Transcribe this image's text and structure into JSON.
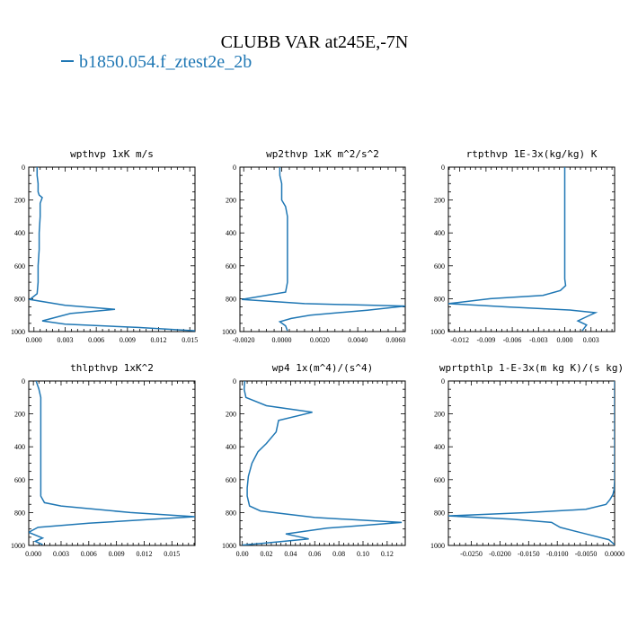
{
  "title": "CLUBB VAR at245E,-7N",
  "legend": {
    "label": "b1850.054.f_ztest2e_2b",
    "color": "#1f77b4"
  },
  "chart_data": [
    {
      "type": "line",
      "title": "wpthvp  1xK m/s",
      "xlim": [
        -0.0005,
        0.0155
      ],
      "ylim": [
        1000,
        0
      ],
      "xticks": [
        0.0,
        0.003,
        0.006,
        0.009,
        0.012,
        0.015
      ],
      "xtick_labels": [
        "0.000",
        "0.003",
        "0.006",
        "0.009",
        "0.012",
        "0.015"
      ],
      "yticks": [
        0,
        200,
        400,
        600,
        800,
        1000
      ],
      "series": [
        {
          "x": [
            0.0003,
            0.0003,
            0.0004,
            0.0004,
            0.0005,
            0.0008,
            0.0006,
            0.0006,
            0.0005,
            0.0005,
            0.0004,
            0.0004,
            0.0003,
            -0.0004,
            0.003,
            0.0078,
            0.0035,
            0.0008,
            0.003,
            0.01,
            0.0155
          ],
          "y": [
            0,
            50,
            100,
            150,
            170,
            185,
            220,
            300,
            400,
            500,
            600,
            700,
            770,
            805,
            840,
            865,
            890,
            935,
            955,
            975,
            995
          ]
        }
      ]
    },
    {
      "type": "line",
      "title": "wp2thvp  1xK m^2/s^2",
      "xlim": [
        -0.0022,
        0.0065
      ],
      "ylim": [
        1000,
        0
      ],
      "xticks": [
        -0.002,
        0.0,
        0.002,
        0.004,
        0.006
      ],
      "xtick_labels": [
        "-0.0020",
        "0.0000",
        "0.0020",
        "0.0040",
        "0.0060"
      ],
      "yticks": [
        0,
        200,
        400,
        600,
        800,
        1000
      ],
      "series": [
        {
          "x": [
            -0.0001,
            -0.0001,
            0.0,
            0.0,
            0.0002,
            0.0003,
            0.0003,
            0.0003,
            0.0003,
            0.0003,
            0.0002,
            -0.0021,
            0.0012,
            0.0065,
            0.0045,
            0.0015,
            0.0005,
            -0.0001,
            0.0002,
            0.0003
          ],
          "y": [
            0,
            50,
            100,
            200,
            240,
            300,
            400,
            500,
            600,
            700,
            760,
            805,
            830,
            845,
            870,
            900,
            920,
            940,
            965,
            995
          ]
        }
      ]
    },
    {
      "type": "line",
      "title": "rtpthvp  1E-3x(kg/kg) K",
      "xlim": [
        -0.0133,
        0.0057
      ],
      "ylim": [
        1000,
        0
      ],
      "xticks": [
        -0.012,
        -0.009,
        -0.006,
        -0.003,
        0.0,
        0.003
      ],
      "xtick_labels": [
        "-0.012",
        "-0.009",
        "-0.006",
        "-0.003",
        "0.000",
        "0.003"
      ],
      "yticks": [
        0,
        200,
        400,
        600,
        800,
        1000
      ],
      "series": [
        {
          "x": [
            0.0,
            0.0,
            0.0,
            0.0,
            0.0,
            0.0001,
            -0.0005,
            -0.0025,
            -0.0085,
            -0.0133,
            -0.0065,
            0.0008,
            0.0035,
            0.0025,
            0.0015,
            0.0025,
            0.002
          ],
          "y": [
            0,
            200,
            400,
            600,
            680,
            720,
            750,
            780,
            800,
            830,
            850,
            870,
            885,
            910,
            935,
            960,
            995
          ]
        }
      ]
    },
    {
      "type": "line",
      "title": "thlpthvp  1xK^2",
      "xlim": [
        -0.0005,
        0.0175
      ],
      "ylim": [
        1000,
        0
      ],
      "xticks": [
        0.0,
        0.003,
        0.006,
        0.009,
        0.012,
        0.015
      ],
      "xtick_labels": [
        "0.000",
        "0.003",
        "0.006",
        "0.009",
        "0.012",
        "0.015"
      ],
      "yticks": [
        0,
        200,
        400,
        600,
        800,
        1000
      ],
      "series": [
        {
          "x": [
            0.0003,
            0.0006,
            0.0008,
            0.0008,
            0.0008,
            0.0008,
            0.0008,
            0.0012,
            0.003,
            0.0105,
            0.0175,
            0.006,
            0.0005,
            -0.0005,
            0.001,
            0.0002,
            0.001
          ],
          "y": [
            0,
            50,
            100,
            200,
            400,
            600,
            700,
            740,
            760,
            800,
            825,
            865,
            890,
            920,
            955,
            975,
            995
          ]
        }
      ]
    },
    {
      "type": "line",
      "title": "wp4  1x(m^4)/(s^4)",
      "xlim": [
        -0.002,
        0.135
      ],
      "ylim": [
        1000,
        0
      ],
      "xticks": [
        0.0,
        0.02,
        0.04,
        0.06,
        0.08,
        0.1,
        0.12
      ],
      "xtick_labels": [
        "0.00",
        "0.02",
        "0.04",
        "0.06",
        "0.08",
        "0.10",
        "0.12"
      ],
      "yticks": [
        0,
        200,
        400,
        600,
        800,
        1000
      ],
      "series": [
        {
          "x": [
            0.002,
            0.0015,
            0.003,
            0.02,
            0.058,
            0.03,
            0.028,
            0.02,
            0.013,
            0.008,
            0.005,
            0.004,
            0.004,
            0.006,
            0.015,
            0.06,
            0.132,
            0.07,
            0.036,
            0.055,
            0.02,
            0.0
          ],
          "y": [
            0,
            50,
            100,
            150,
            190,
            240,
            310,
            380,
            430,
            500,
            580,
            650,
            700,
            760,
            790,
            830,
            860,
            895,
            930,
            960,
            985,
            998
          ]
        }
      ]
    },
    {
      "type": "line",
      "title": "wprtpthlp  1-E-3x(m kg K)/(s kg)",
      "xlim": [
        -0.029,
        0.0
      ],
      "ylim": [
        1000,
        0
      ],
      "xticks": [
        -0.025,
        -0.02,
        -0.015,
        -0.01,
        -0.005,
        0.0
      ],
      "xtick_labels": [
        "-0.0250",
        "-0.0200",
        "-0.0150",
        "-0.0100",
        "-0.0050",
        "0.0000"
      ],
      "yticks": [
        0,
        200,
        400,
        600,
        800,
        1000
      ],
      "series": [
        {
          "x": [
            0.0,
            0.0,
            0.0,
            0.0,
            -0.0001,
            -0.0003,
            -0.0008,
            -0.0015,
            -0.005,
            -0.015,
            -0.029,
            -0.018,
            -0.011,
            -0.0095,
            -0.005,
            -0.001,
            0.0
          ],
          "y": [
            0,
            200,
            400,
            600,
            660,
            690,
            720,
            750,
            780,
            800,
            820,
            840,
            860,
            890,
            930,
            965,
            995
          ]
        }
      ]
    }
  ]
}
